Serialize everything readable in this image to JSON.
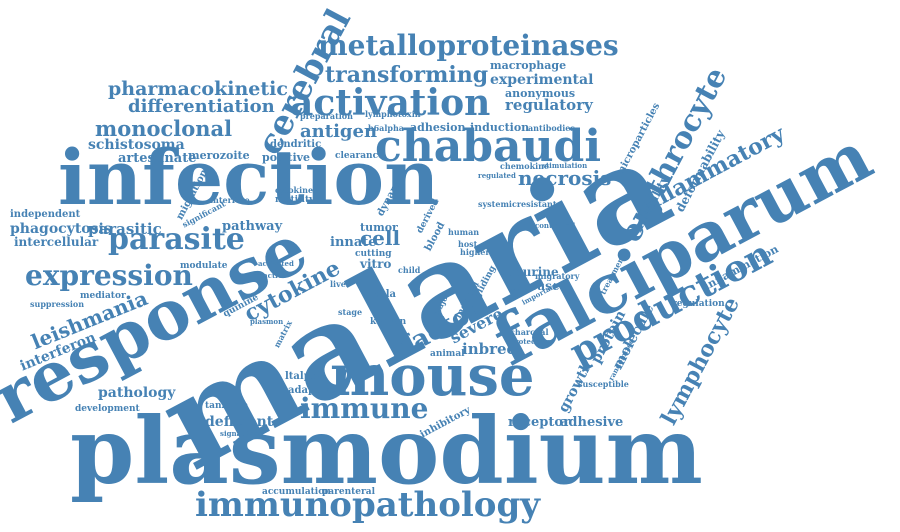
{
  "color": "#4682b4",
  "words": [
    {
      "text": "malaria"
    },
    {
      "text": "plasmodium"
    },
    {
      "text": "infection"
    },
    {
      "text": "response"
    },
    {
      "text": "falciparum"
    },
    {
      "text": "mouse"
    },
    {
      "text": "chabaudi"
    },
    {
      "text": "immunopathology"
    },
    {
      "text": "activation"
    },
    {
      "text": "production"
    },
    {
      "text": "cerebral"
    },
    {
      "text": "parasite"
    },
    {
      "text": "expression"
    },
    {
      "text": "erythrocyte"
    },
    {
      "text": "metalloproteinases"
    },
    {
      "text": "transforming"
    },
    {
      "text": "pharmacokinetic"
    },
    {
      "text": "differentiation"
    },
    {
      "text": "monoclonal"
    },
    {
      "text": "leishmania"
    },
    {
      "text": "immune"
    },
    {
      "text": "necrosis"
    },
    {
      "text": "inflammatory"
    },
    {
      "text": "factor"
    },
    {
      "text": "cytokine"
    },
    {
      "text": "lymphocyte"
    },
    {
      "text": "antigen"
    },
    {
      "text": "regulatory"
    },
    {
      "text": "experimental"
    },
    {
      "text": "macrophage"
    },
    {
      "text": "anonymous"
    },
    {
      "text": "schistosoma"
    },
    {
      "text": "artesunate"
    },
    {
      "text": "phagocytosis"
    },
    {
      "text": "intercellular"
    },
    {
      "text": "parasitic"
    },
    {
      "text": "independent"
    },
    {
      "text": "interferon"
    },
    {
      "text": "pathology"
    },
    {
      "text": "deficient"
    },
    {
      "text": "inbred"
    },
    {
      "text": "severe"
    },
    {
      "text": "receptor"
    },
    {
      "text": "adhesive"
    },
    {
      "text": "growth"
    },
    {
      "text": "protein"
    },
    {
      "text": "molecule"
    },
    {
      "text": "inflammation"
    },
    {
      "text": "mortality"
    },
    {
      "text": "deformability"
    },
    {
      "text": "microparticles"
    },
    {
      "text": "cell"
    },
    {
      "text": "pathway"
    },
    {
      "text": "innate"
    },
    {
      "text": "dendritic"
    },
    {
      "text": "merozoite"
    },
    {
      "text": "positive"
    },
    {
      "text": "migration"
    },
    {
      "text": "motility"
    },
    {
      "text": "cytokines"
    },
    {
      "text": "interfere"
    },
    {
      "text": "adhesion"
    },
    {
      "text": "induction"
    },
    {
      "text": "antibodies"
    },
    {
      "text": "clearance"
    },
    {
      "text": "tumor"
    },
    {
      "text": "cutting"
    },
    {
      "text": "vitro"
    },
    {
      "text": "ctla"
    },
    {
      "text": "kenyan"
    },
    {
      "text": "animal"
    },
    {
      "text": "disease"
    },
    {
      "text": "murine"
    },
    {
      "text": "higher"
    },
    {
      "text": "host"
    },
    {
      "text": "human"
    },
    {
      "text": "derived"
    },
    {
      "text": "blood"
    },
    {
      "text": "dynamic"
    },
    {
      "text": "tanzania"
    },
    {
      "text": "adaptive"
    },
    {
      "text": "ltalpha"
    },
    {
      "text": "development"
    },
    {
      "text": "accumulation"
    },
    {
      "text": "parenteral"
    },
    {
      "text": "inhibitory"
    },
    {
      "text": "mediator"
    },
    {
      "text": "suppression"
    },
    {
      "text": "modulate"
    },
    {
      "text": "significant"
    },
    {
      "text": "quinine"
    },
    {
      "text": "plasmon"
    },
    {
      "text": "reactive"
    },
    {
      "text": "activated"
    },
    {
      "text": "lymphotoxin"
    },
    {
      "text": "preparation"
    },
    {
      "text": "b6alpha"
    },
    {
      "text": "chemokine"
    },
    {
      "text": "stimulation"
    },
    {
      "text": "regulated"
    },
    {
      "text": "systemicresistant"
    },
    {
      "text": "controlled"
    },
    {
      "text": "migratory"
    },
    {
      "text": "treatment"
    },
    {
      "text": "regulation"
    },
    {
      "text": "randomized"
    },
    {
      "text": "susceptible"
    },
    {
      "text": "charcoal"
    },
    {
      "text": "protection"
    },
    {
      "text": "signalling"
    },
    {
      "text": "matrix"
    },
    {
      "text": "child"
    },
    {
      "text": "major"
    },
    {
      "text": "stage"
    },
    {
      "text": "liver"
    },
    {
      "text": "gliding"
    },
    {
      "text": "induced"
    },
    {
      "text": "important"
    }
  ]
}
